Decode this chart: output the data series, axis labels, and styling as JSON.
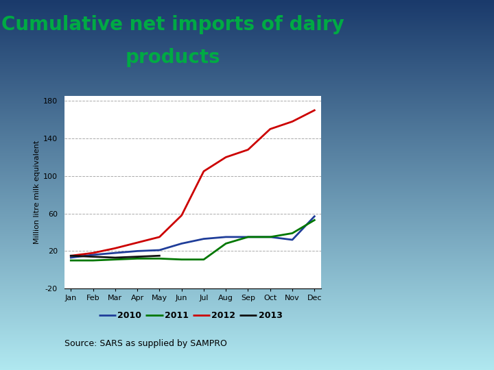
{
  "title_line1": "Cumulative net imports of dairy",
  "title_line2": "products",
  "ylabel": "Million litre milk equivalent",
  "source": "Source: SARS as supplied by SAMPRO",
  "months": [
    "Jan",
    "Feb",
    "Mar",
    "Apr",
    "May",
    "Jun",
    "Jul",
    "Aug",
    "Sep",
    "Oct",
    "Nov",
    "Dec"
  ],
  "series": {
    "2010": {
      "color": "#1f3d99",
      "values": [
        13,
        16,
        18,
        20,
        21,
        28,
        33,
        35,
        35,
        35,
        32,
        57
      ]
    },
    "2011": {
      "color": "#007700",
      "values": [
        10,
        10,
        11,
        12,
        12,
        11,
        11,
        28,
        35,
        35,
        39,
        53
      ]
    },
    "2012": {
      "color": "#cc0000",
      "values": [
        15,
        18,
        23,
        29,
        35,
        58,
        105,
        120,
        128,
        150,
        158,
        170
      ]
    },
    "2013": {
      "color": "#111111",
      "values": [
        15,
        14,
        13,
        14,
        15,
        null,
        null,
        null,
        null,
        null,
        null,
        null
      ]
    }
  },
  "ylim": [
    -20,
    185
  ],
  "yticks": [
    -20,
    20,
    60,
    100,
    140,
    180
  ],
  "title_color": "#00aa44",
  "title_fontsize": 20,
  "ylabel_fontsize": 8,
  "tick_fontsize": 8,
  "source_fontsize": 9,
  "legend_fontsize": 9,
  "bg_top": "#1a3a6b",
  "bg_bottom": "#b0e8f0",
  "line_width": 2.0
}
